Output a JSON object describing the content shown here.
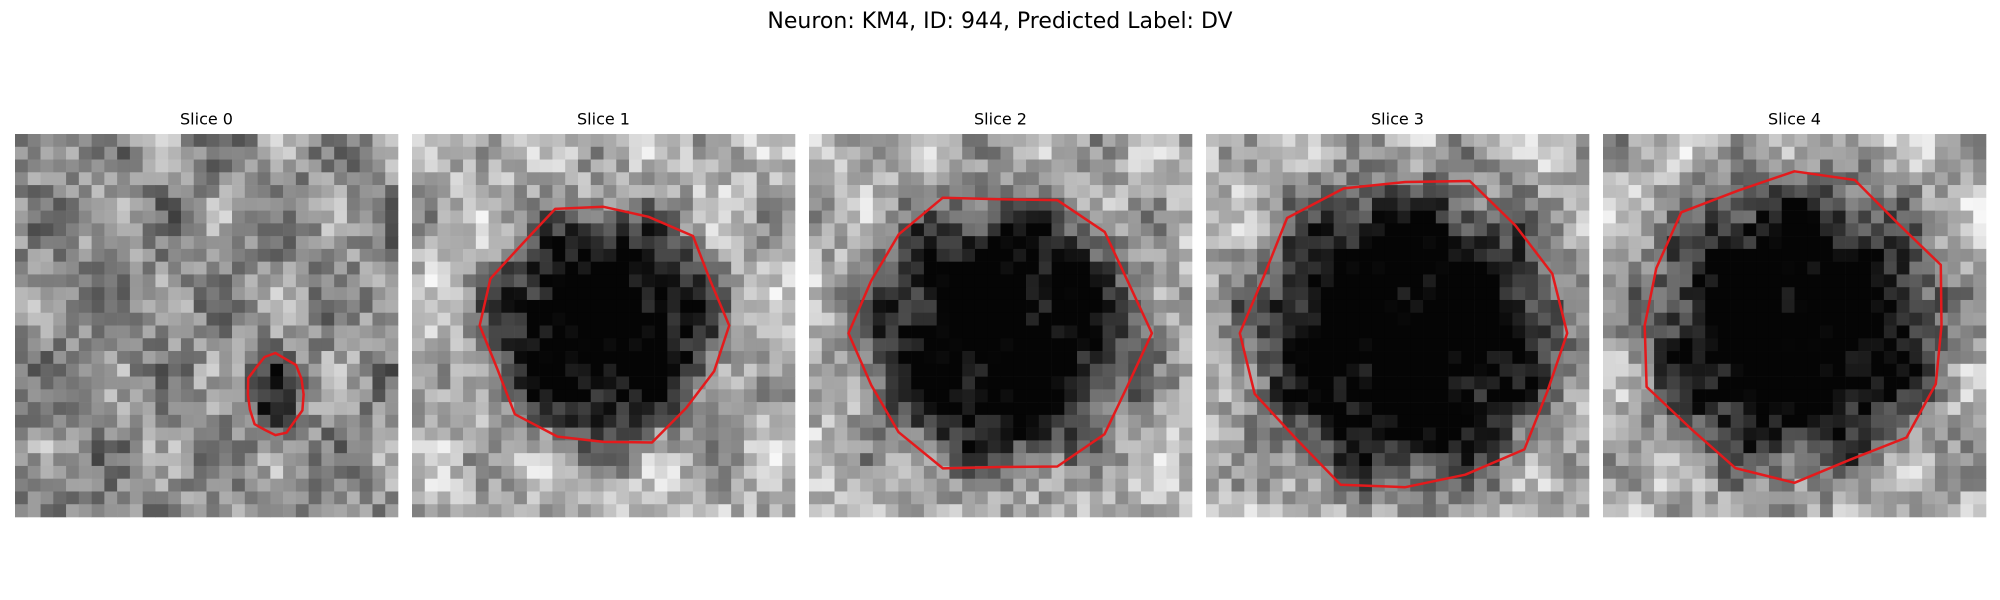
{
  "header": {
    "title": "Neuron: KM4, ID: 944, Predicted Label: DV"
  },
  "panels": [
    {
      "title": "Slice 0"
    },
    {
      "title": "Slice 1"
    },
    {
      "title": "Slice 2"
    },
    {
      "title": "Slice 3"
    },
    {
      "title": "Slice 4"
    }
  ]
}
